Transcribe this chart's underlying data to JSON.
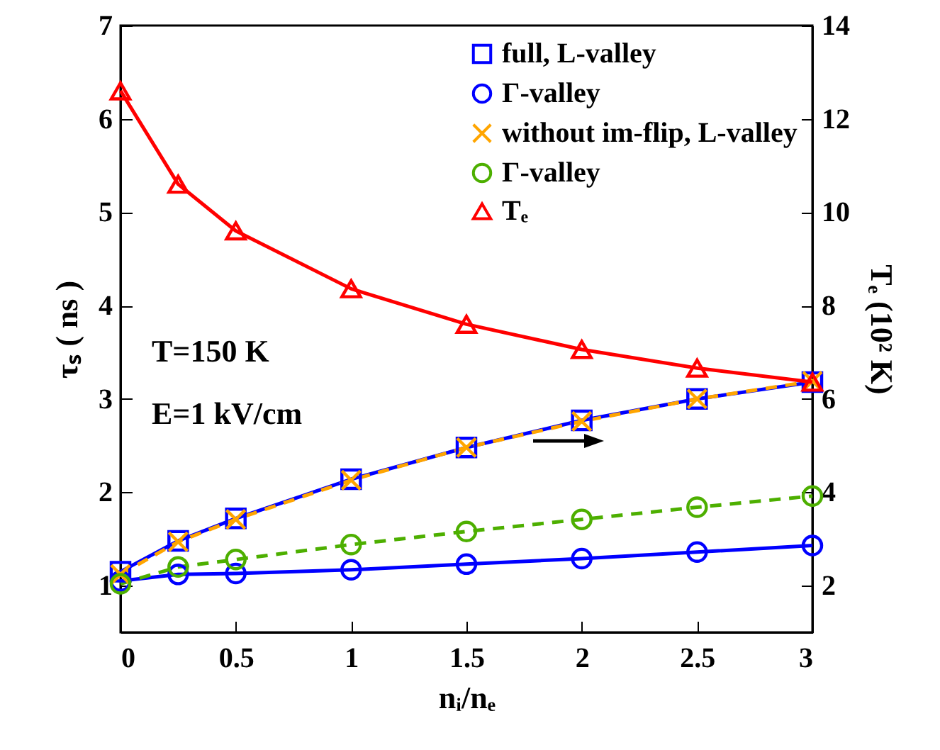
{
  "chart_data": {
    "type": "line",
    "xlabel": "nᵢ/nₑ",
    "ylabel": "τₛ ( ns )",
    "y2label": "Tₑ (10² K)",
    "x": [
      0,
      0.25,
      0.5,
      1,
      1.5,
      2,
      2.5,
      3
    ],
    "xlim": [
      0,
      3
    ],
    "xticks": [
      0,
      0.5,
      1,
      1.5,
      2,
      2.5,
      3
    ],
    "ylim": [
      0.5,
      7
    ],
    "yticks": [
      1,
      2,
      3,
      4,
      5,
      6,
      7
    ],
    "y2lim": [
      1,
      14
    ],
    "y2ticks": [
      2,
      4,
      6,
      8,
      10,
      12,
      14
    ],
    "grid": false,
    "legend": "top right",
    "annotations": [
      "T=150 K",
      "E=1 kV/cm"
    ],
    "series": [
      {
        "name": "full, L-valley",
        "color": "#0000ff",
        "marker": "square",
        "line_style": "solid",
        "values": [
          1.15,
          1.48,
          1.72,
          2.14,
          2.48,
          2.77,
          3.0,
          3.18
        ]
      },
      {
        "name": "Γ-valley",
        "color": "#0000ff",
        "marker": "circle",
        "line_style": "solid",
        "values": [
          1.05,
          1.12,
          1.13,
          1.17,
          1.23,
          1.29,
          1.36,
          1.43
        ]
      },
      {
        "name": "without im-flip, L-valley",
        "color": "#ffa500",
        "marker": "cross",
        "line_style": "dashed",
        "values": [
          1.12,
          1.47,
          1.71,
          2.13,
          2.48,
          2.76,
          3.0,
          3.19
        ]
      },
      {
        "name": "Γ-valley",
        "color": "#4daf00",
        "marker": "circle",
        "line_style": "dashed",
        "values": [
          1.02,
          1.2,
          1.28,
          1.44,
          1.58,
          1.71,
          1.84,
          1.96
        ]
      },
      {
        "name": "Tₑ",
        "color": "#ff0000",
        "marker": "triangle",
        "line_style": "solid",
        "axis": "y2",
        "values": [
          12.6,
          10.6,
          9.6,
          8.36,
          7.6,
          7.06,
          6.66,
          6.36
        ]
      }
    ]
  }
}
